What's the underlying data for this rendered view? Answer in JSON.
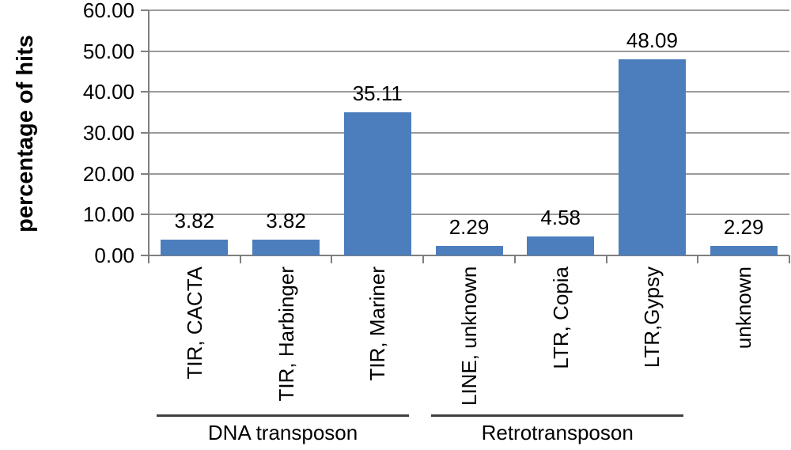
{
  "chart_data": {
    "type": "bar",
    "categories": [
      "TIR, CACTA",
      "TIR, Harbinger",
      "TIR, Mariner",
      "LINE, unknown",
      "LTR, Copia",
      "LTR,Gypsy",
      "unknown"
    ],
    "values": [
      3.82,
      3.82,
      35.11,
      2.29,
      4.58,
      48.09,
      2.29
    ],
    "value_labels": [
      "3.82",
      "3.82",
      "35.11",
      "2.29",
      "4.58",
      "48.09",
      "2.29"
    ],
    "title": "",
    "xlabel": "",
    "ylabel": "percentage of hits",
    "ylim": [
      0,
      60
    ],
    "ytick_step": 10,
    "ytick_labels": [
      "0.00",
      "10.00",
      "20.00",
      "30.00",
      "40.00",
      "50.00",
      "60.00"
    ],
    "grid": true,
    "legend": "none",
    "groups": [
      {
        "label": "DNA transposon",
        "start": 0,
        "end": 2
      },
      {
        "label": "Retrotransposon",
        "start": 3,
        "end": 5
      }
    ]
  },
  "colors": {
    "bar": "#4C7EBD",
    "gridline": "#9b9b9b",
    "axis": "#7f7f7f",
    "group_line": "#3f3f3f",
    "text": "#000000",
    "background": "#ffffff"
  }
}
